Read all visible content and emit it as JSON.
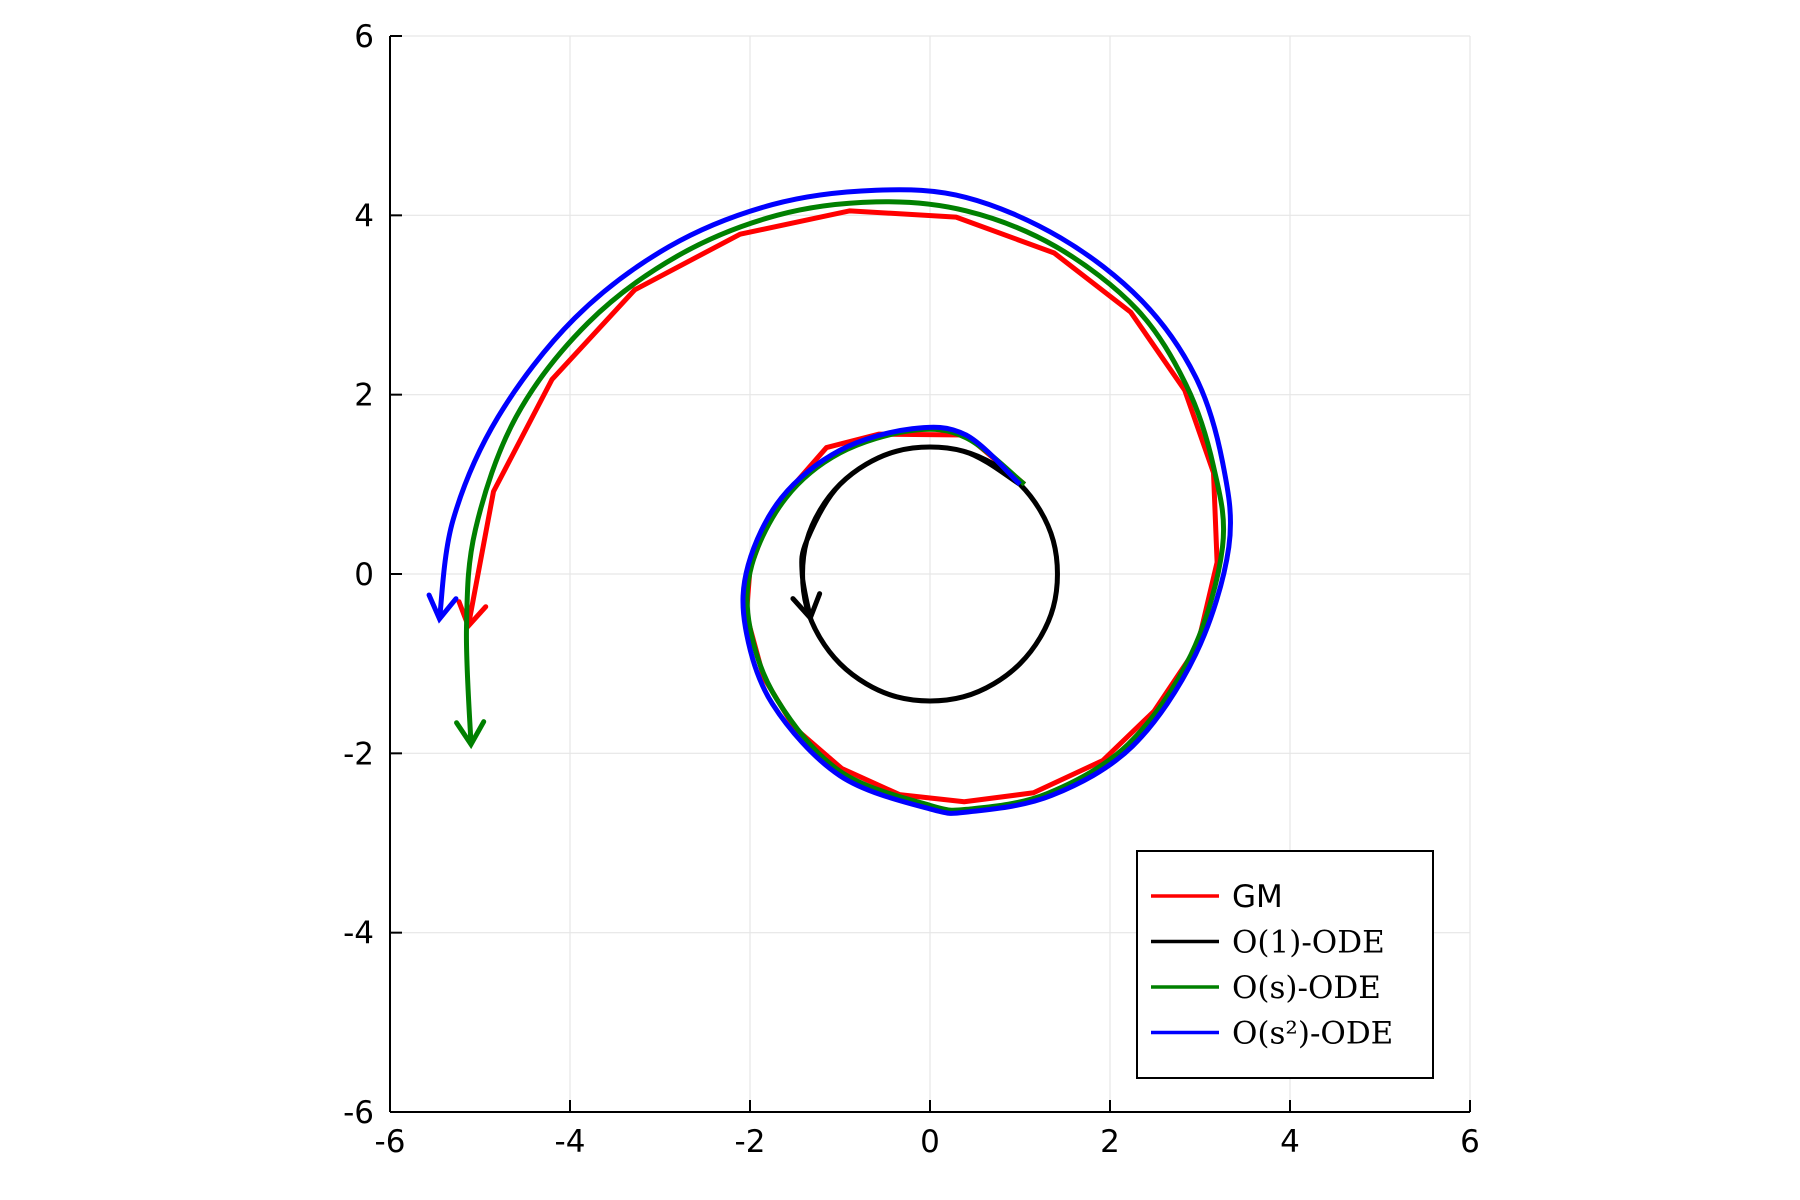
{
  "chart_data": {
    "type": "line",
    "xlim": [
      -6,
      6
    ],
    "ylim": [
      -6,
      6
    ],
    "xticks": [
      -6,
      -4,
      -2,
      0,
      2,
      4,
      6
    ],
    "yticks": [
      -6,
      -4,
      -2,
      0,
      2,
      4,
      6
    ],
    "grid": true,
    "legend": "lower right",
    "arrows": true,
    "series": [
      {
        "name": "GM",
        "color": "#ff0000",
        "smooth": false,
        "x": [
          1.05,
          0.4,
          -0.57,
          -1.15,
          -1.49,
          -1.81,
          -2.0,
          -2.04,
          -1.85,
          -1.51,
          -0.98,
          -0.34,
          0.38,
          1.15,
          1.92,
          2.49,
          2.97,
          3.19,
          3.15,
          2.83,
          2.23,
          1.38,
          0.29,
          -0.89,
          -2.11,
          -3.28,
          -4.2,
          -4.85,
          -5.13
        ],
        "values": [
          1.0,
          1.55,
          1.56,
          1.41,
          1.02,
          0.58,
          0.06,
          -0.45,
          -1.15,
          -1.71,
          -2.17,
          -2.46,
          -2.54,
          -2.44,
          -2.08,
          -1.53,
          -0.81,
          0.13,
          1.13,
          2.05,
          2.92,
          3.58,
          3.98,
          4.05,
          3.79,
          3.17,
          2.17,
          0.92,
          -0.58
        ]
      },
      {
        "name": "O(1)-ODE",
        "color": "#000000",
        "smooth": true,
        "x": [
          1.0,
          0.37,
          -0.37,
          -1.0,
          -1.37,
          -1.37,
          -1.0,
          -0.37,
          0.37,
          1.0,
          1.37,
          1.37,
          1.0,
          0.37,
          -0.37,
          -1.0,
          -1.37,
          -1.42,
          -1.33
        ],
        "values": [
          1.0,
          1.37,
          1.37,
          1.0,
          0.37,
          -0.37,
          -1.0,
          -1.37,
          -1.37,
          -1.0,
          -0.37,
          0.37,
          1.0,
          1.37,
          1.37,
          1.0,
          0.37,
          0.0,
          -0.49
        ]
      },
      {
        "name": "O(s)-ODE",
        "color": "#008000",
        "smooth": true,
        "x": [
          1.05,
          0.4,
          -0.2,
          -1.0,
          -1.6,
          -1.98,
          -2.0,
          -1.7,
          -1.0,
          0.0,
          0.45,
          1.3,
          2.2,
          2.9,
          3.25,
          3.15,
          2.85,
          2.3,
          1.4,
          0.4,
          -0.6,
          -1.7,
          -2.8,
          -3.8,
          -4.6,
          -5.05,
          -5.15,
          -5.1
        ],
        "values": [
          1.0,
          1.52,
          1.6,
          1.35,
          0.85,
          0.1,
          -0.6,
          -1.4,
          -2.2,
          -2.58,
          -2.62,
          -2.45,
          -1.9,
          -0.9,
          0.3,
          1.2,
          2.1,
          2.95,
          3.65,
          4.05,
          4.15,
          4.0,
          3.55,
          2.8,
          1.75,
          0.5,
          -0.6,
          -1.9
        ]
      },
      {
        "name": "O(s²)-ODE",
        "color": "#0000ff",
        "smooth": true,
        "x": [
          1.0,
          0.4,
          -0.2,
          -1.0,
          -1.65,
          -2.02,
          -2.05,
          -1.75,
          -1.0,
          0.0,
          0.45,
          1.35,
          2.25,
          2.95,
          3.32,
          3.25,
          2.95,
          2.35,
          1.45,
          0.4,
          -0.6,
          -1.75,
          -2.9,
          -3.95,
          -4.8,
          -5.3,
          -5.45
        ],
        "values": [
          1.0,
          1.55,
          1.62,
          1.38,
          0.85,
          0.1,
          -0.6,
          -1.45,
          -2.25,
          -2.62,
          -2.65,
          -2.47,
          -1.92,
          -0.9,
          0.3,
          1.25,
          2.2,
          3.05,
          3.75,
          4.2,
          4.28,
          4.12,
          3.65,
          2.85,
          1.75,
          0.6,
          -0.5
        ]
      }
    ]
  }
}
